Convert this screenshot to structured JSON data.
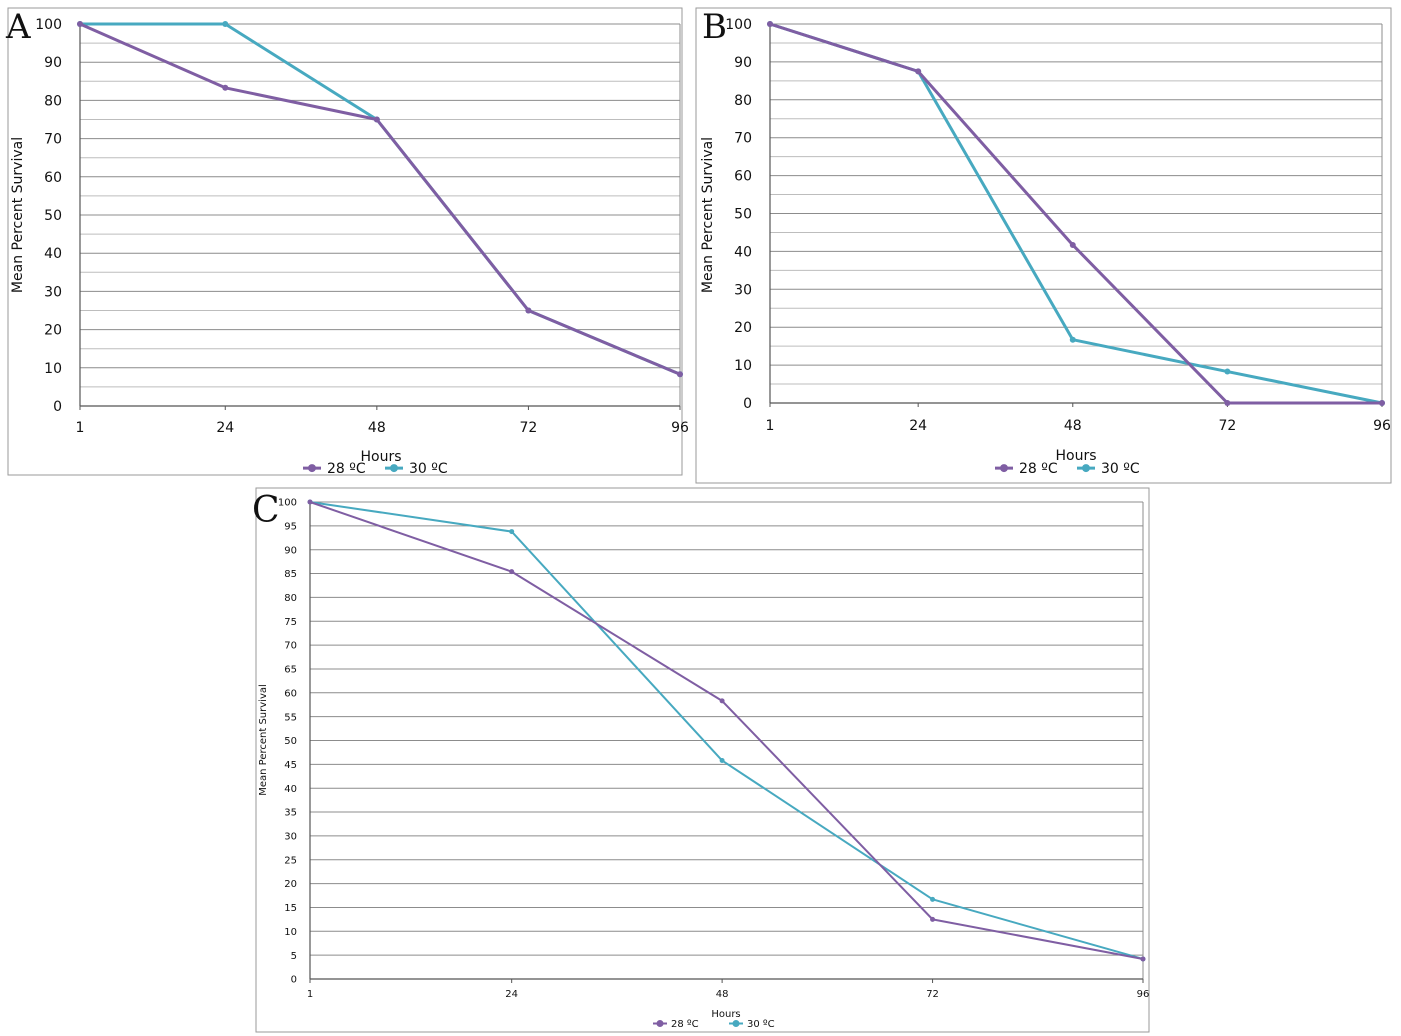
{
  "chart_data": [
    {
      "panel": "A",
      "type": "line",
      "x": [
        1,
        24,
        48,
        72,
        96
      ],
      "xlabel": "Hours",
      "ylabel": "Mean Percent Survival",
      "ylim": [
        0,
        100
      ],
      "yticks": [
        0,
        10,
        20,
        30,
        40,
        50,
        60,
        70,
        80,
        90,
        100
      ],
      "grid": true,
      "legend": "bottom",
      "series": [
        {
          "name": "28 ºC",
          "color": "#7f5ea3",
          "values": [
            100,
            83.3,
            75,
            25,
            8.3
          ]
        },
        {
          "name": "30 ºC",
          "color": "#47a9c0",
          "values": [
            100,
            100,
            75,
            25,
            8.3
          ]
        }
      ]
    },
    {
      "panel": "B",
      "type": "line",
      "x": [
        1,
        24,
        48,
        72,
        96
      ],
      "xlabel": "Hours",
      "ylabel": "Mean Percent Survival",
      "ylim": [
        0,
        100
      ],
      "yticks": [
        0,
        10,
        20,
        30,
        40,
        50,
        60,
        70,
        80,
        90,
        100
      ],
      "grid": true,
      "legend": "bottom",
      "series": [
        {
          "name": "28 ºC",
          "color": "#7f5ea3",
          "values": [
            100,
            87.5,
            41.7,
            0,
            0
          ]
        },
        {
          "name": "30 ºC",
          "color": "#47a9c0",
          "values": [
            100,
            87.5,
            16.7,
            8.3,
            0
          ]
        }
      ]
    },
    {
      "panel": "C",
      "type": "line",
      "x": [
        1,
        24,
        48,
        72,
        96
      ],
      "xlabel": "Hours",
      "ylabel": "Mean Percent Survival",
      "ylim": [
        0,
        100
      ],
      "yticks": [
        0,
        5,
        10,
        15,
        20,
        25,
        30,
        35,
        40,
        45,
        50,
        55,
        60,
        65,
        70,
        75,
        80,
        85,
        90,
        95,
        100
      ],
      "grid": true,
      "legend": "bottom",
      "series": [
        {
          "name": "28 ºC",
          "color": "#7f5ea3",
          "values": [
            100,
            85.4,
            58.3,
            12.5,
            4.2
          ]
        },
        {
          "name": "30 ºC",
          "color": "#47a9c0",
          "values": [
            100,
            93.8,
            45.8,
            16.7,
            4.2
          ]
        }
      ]
    }
  ]
}
